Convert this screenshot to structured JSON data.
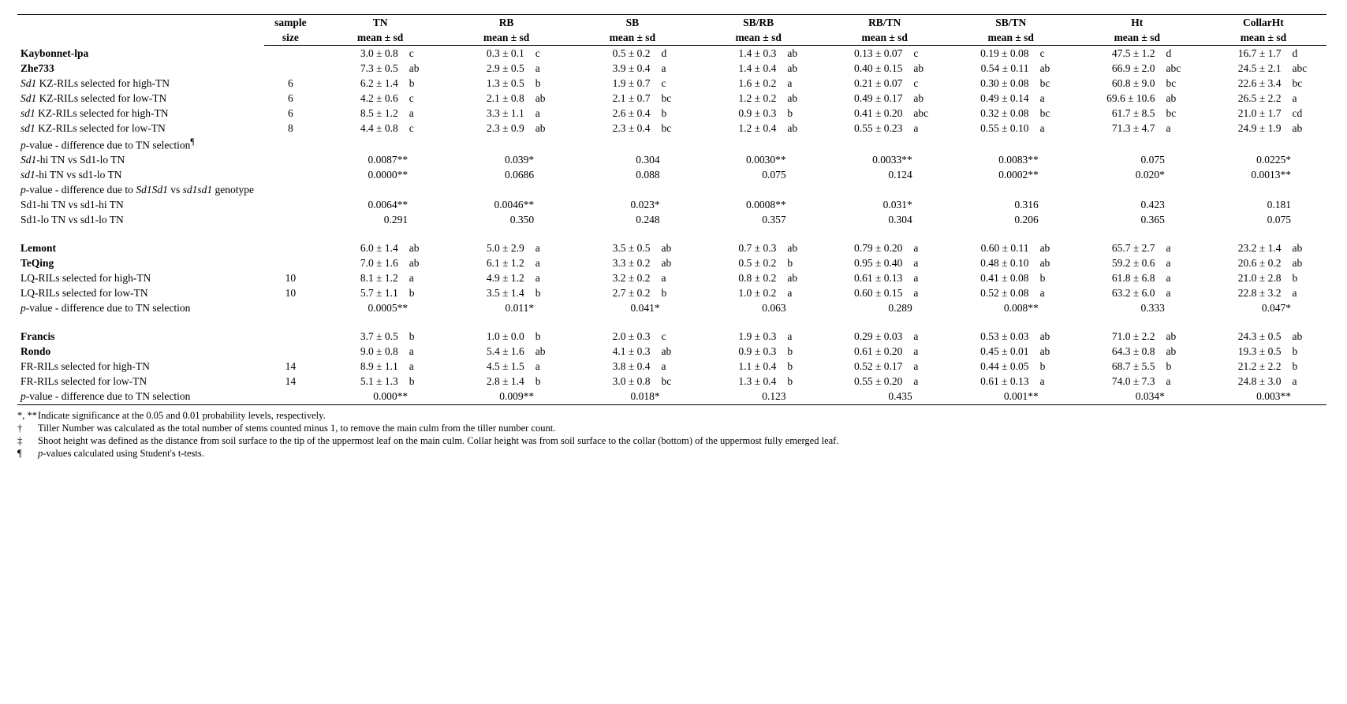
{
  "headers": {
    "sample": "sample",
    "size": "size",
    "meansd": "mean ± sd",
    "meansd_alt": "mean   ± sd",
    "cols": [
      "TN",
      "RB",
      "SB",
      "SB/RB",
      "RB/TN",
      "SB/TN",
      "Ht",
      "CollarHt"
    ]
  },
  "rows": [
    {
      "label": "Kaybonnet-lpa",
      "bold": true,
      "n": "",
      "v": [
        "3.0 ± 0.8",
        "c",
        "0.3 ± 0.1",
        "c",
        "0.5 ± 0.2",
        "d",
        "1.4 ± 0.3",
        "ab",
        "0.13 ± 0.07",
        "c",
        "0.19 ± 0.08",
        "c",
        "47.5 ± 1.2",
        "d",
        "16.7 ± 1.7",
        "d"
      ]
    },
    {
      "label": "Zhe733",
      "bold": true,
      "n": "",
      "v": [
        "7.3 ± 0.5",
        "ab",
        "2.9 ± 0.5",
        "a",
        "3.9 ± 0.4",
        "a",
        "1.4 ± 0.4",
        "ab",
        "0.40 ± 0.15",
        "ab",
        "0.54 ± 0.11",
        "ab",
        "66.9 ± 2.0",
        "abc",
        "24.5 ± 2.1",
        "abc"
      ]
    },
    {
      "label_html": "<span class='ital'>Sd1</span> KZ-RILs selected for high-TN",
      "n": "6",
      "v": [
        "6.2 ± 1.4",
        "b",
        "1.3 ± 0.5",
        "b",
        "1.9 ± 0.7",
        "c",
        "1.6 ± 0.2",
        "a",
        "0.21 ± 0.07",
        "c",
        "0.30 ± 0.08",
        "bc",
        "60.8 ± 9.0",
        "bc",
        "22.6 ± 3.4",
        "bc"
      ]
    },
    {
      "label_html": "<span class='ital'>Sd1</span> KZ-RILs selected for low-TN",
      "n": "6",
      "v": [
        "4.2 ± 0.6",
        "c",
        "2.1 ± 0.8",
        "ab",
        "2.1 ± 0.7",
        "bc",
        "1.2 ± 0.2",
        "ab",
        "0.49 ± 0.17",
        "ab",
        "0.49 ± 0.14",
        "a",
        "69.6 ± 10.6",
        "ab",
        "26.5 ± 2.2",
        "a"
      ]
    },
    {
      "label_html": "<span class='ital'>sd1</span> KZ-RILs selected for high-TN",
      "n": "6",
      "v": [
        "8.5 ± 1.2",
        "a",
        "3.3 ± 1.1",
        "a",
        "2.6 ± 0.4",
        "b",
        "0.9 ± 0.3",
        "b",
        "0.41 ± 0.20",
        "abc",
        "0.32 ± 0.08",
        "bc",
        "61.7 ± 8.5",
        "bc",
        "21.0 ± 1.7",
        "cd"
      ]
    },
    {
      "label_html": "<span class='ital'>sd1</span> KZ-RILs selected for low-TN",
      "n": "8",
      "v": [
        "4.4 ± 0.8",
        "c",
        "2.3 ± 0.9",
        "ab",
        "2.3 ± 0.4",
        "bc",
        "1.2 ± 0.4",
        "ab",
        "0.55 ± 0.23",
        "a",
        "0.55 ± 0.10",
        "a",
        "71.3 ± 4.7",
        "a",
        "24.9 ± 1.9",
        "ab"
      ]
    },
    {
      "label_html": "<span class='ital'>p</span>-value - difference due to TN selection<sup>¶</sup>",
      "n": "",
      "section": true
    },
    {
      "label_html": "<span class='ital'>Sd1</span>-hi TN vs Sd1-lo TN",
      "n": "",
      "p": [
        "0.0087**",
        "0.039*",
        "0.304",
        "0.0030**",
        "0.0033**",
        "0.0083**",
        "0.075",
        "0.0225*"
      ]
    },
    {
      "label_html": "<span class='ital'>sd1</span>-hi TN vs sd1-lo TN",
      "n": "",
      "p": [
        "0.0000**",
        "0.0686",
        "0.088",
        "0.075",
        "0.124",
        "0.0002**",
        "0.020*",
        "0.0013**"
      ]
    },
    {
      "label_html": "<span class='ital'>p</span>-value - difference due to <span class='ital'>Sd1Sd1</span> vs <span class='ital'>sd1sd1</span> genotype",
      "n": "",
      "section": true
    },
    {
      "label": "Sd1-hi TN vs sd1-hi TN",
      "n": "",
      "p": [
        "0.0064**",
        "0.0046**",
        "0.023*",
        "0.0008**",
        "0.031*",
        "0.316",
        "0.423",
        "0.181"
      ]
    },
    {
      "label": "Sd1-lo TN vs sd1-lo TN",
      "n": "",
      "p": [
        "0.291",
        "0.350",
        "0.248",
        "0.357",
        "0.304",
        "0.206",
        "0.365",
        "0.075"
      ]
    },
    {
      "spacer": true
    },
    {
      "label": "Lemont",
      "bold": true,
      "n": "",
      "v": [
        "6.0 ± 1.4",
        "ab",
        "5.0 ± 2.9",
        "a",
        "3.5 ± 0.5",
        "ab",
        "0.7 ± 0.3",
        "ab",
        "0.79 ± 0.20",
        "a",
        "0.60 ± 0.11",
        "ab",
        "65.7 ± 2.7",
        "a",
        "23.2 ± 1.4",
        "ab"
      ]
    },
    {
      "label": "TeQing",
      "bold": true,
      "n": "",
      "v": [
        "7.0 ± 1.6",
        "ab",
        "6.1 ± 1.2",
        "a",
        "3.3 ± 0.2",
        "ab",
        "0.5 ± 0.2",
        "b",
        "0.95 ± 0.40",
        "a",
        "0.48 ± 0.10",
        "ab",
        "59.2 ± 0.6",
        "a",
        "20.6 ± 0.2",
        "ab"
      ]
    },
    {
      "label": "LQ-RILs selected for high-TN",
      "n": "10",
      "v": [
        "8.1 ± 1.2",
        "a",
        "4.9 ± 1.2",
        "a",
        "3.2 ± 0.2",
        "a",
        "0.8 ± 0.2",
        "ab",
        "0.61 ± 0.13",
        "a",
        "0.41 ± 0.08",
        "b",
        "61.8 ± 6.8",
        "a",
        "21.0 ± 2.8",
        "b"
      ]
    },
    {
      "label": "LQ-RILs selected for low-TN",
      "n": "10",
      "v": [
        "5.7 ± 1.1",
        "b",
        "3.5 ± 1.4",
        "b",
        "2.7 ± 0.2",
        "b",
        "1.0 ± 0.2",
        "a",
        "0.60 ± 0.15",
        "a",
        "0.52 ± 0.08",
        "a",
        "63.2 ± 6.0",
        "a",
        "22.8 ± 3.2",
        "a"
      ]
    },
    {
      "label_html": "<span class='ital'>p</span>-value - difference due to TN selection",
      "n": "",
      "p": [
        "0.0005**",
        "0.011*",
        "0.041*",
        "0.063",
        "0.289",
        "0.008**",
        "0.333",
        "0.047*"
      ]
    },
    {
      "spacer": true
    },
    {
      "label": "Francis",
      "bold": true,
      "n": "",
      "v": [
        "3.7 ± 0.5",
        "b",
        "1.0 ± 0.0",
        "b",
        "2.0 ± 0.3",
        "c",
        "1.9 ± 0.3",
        "a",
        "0.29 ± 0.03",
        "a",
        "0.53 ± 0.03",
        "ab",
        "71.0 ± 2.2",
        "ab",
        "24.3 ± 0.5",
        "ab"
      ]
    },
    {
      "label": "Rondo",
      "bold": true,
      "n": "",
      "v": [
        "9.0 ± 0.8",
        "a",
        "5.4 ± 1.6",
        "ab",
        "4.1 ± 0.3",
        "ab",
        "0.9 ± 0.3",
        "b",
        "0.61 ± 0.20",
        "a",
        "0.45 ± 0.01",
        "ab",
        "64.3 ± 0.8",
        "ab",
        "19.3 ± 0.5",
        "b"
      ]
    },
    {
      "label": "FR-RILs selected for high-TN",
      "n": "14",
      "v": [
        "8.9 ± 1.1",
        "a",
        "4.5 ± 1.5",
        "a",
        "3.8 ± 0.4",
        "a",
        "1.1 ± 0.4",
        "b",
        "0.52 ± 0.17",
        "a",
        "0.44 ± 0.05",
        "b",
        "68.7 ± 5.5",
        "b",
        "21.2 ± 2.2",
        "b"
      ]
    },
    {
      "label": "FR-RILs selected for low-TN",
      "n": "14",
      "v": [
        "5.1 ± 1.3",
        "b",
        "2.8 ± 1.4",
        "b",
        "3.0 ± 0.8",
        "bc",
        "1.3 ± 0.4",
        "b",
        "0.55 ± 0.20",
        "a",
        "0.61 ± 0.13",
        "a",
        "74.0 ± 7.3",
        "a",
        "24.8 ± 3.0",
        "a"
      ]
    },
    {
      "label_html": "<span class='ital'>p</span>-value - difference due to TN selection",
      "n": "",
      "last": true,
      "p": [
        "0.000**",
        "0.009**",
        "0.018*",
        "0.123",
        "0.435",
        "0.001**",
        "0.034*",
        "0.003**"
      ]
    }
  ],
  "notes": [
    {
      "sym": "*, **",
      "text": "Indicate significance at the 0.05 and 0.01 probability levels, respectively."
    },
    {
      "sym": "†",
      "text": "Tiller Number was calculated as the total number of stems counted minus 1, to remove the main culm from the tiller number count."
    },
    {
      "sym": "‡",
      "text": "Shoot height was defined as the distance from soil surface to the tip of the uppermost leaf on the main culm.  Collar height was from soil surface to the collar (bottom) of the uppermost fully emerged leaf."
    },
    {
      "sym": "¶",
      "text_html": "<span class='ital'>p</span>-values calculated using Student's t-tests."
    }
  ]
}
